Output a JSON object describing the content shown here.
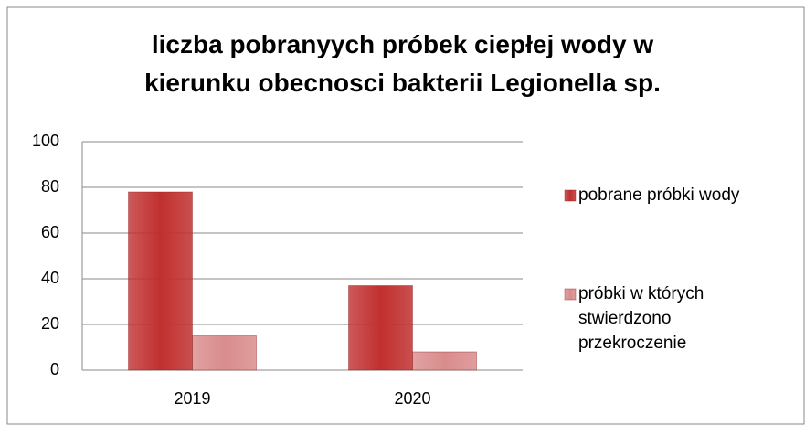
{
  "chart_data": {
    "type": "bar",
    "title": "liczba pobranyych próbek ciepłej wody w kierunku obecnosci bakterii Legionella sp.",
    "categories": [
      "2019",
      "2020"
    ],
    "series": [
      {
        "name": "pobrane próbki wody",
        "color": "#c0302f",
        "values": [
          78,
          37
        ]
      },
      {
        "name": "próbki w których stwierdzono przekroczenie",
        "color": "#d98c8c",
        "values": [
          15,
          8
        ]
      }
    ],
    "ylim": [
      0,
      100
    ],
    "yticks": [
      0,
      20,
      40,
      60,
      80,
      100
    ],
    "grid": true,
    "legend": "right"
  }
}
